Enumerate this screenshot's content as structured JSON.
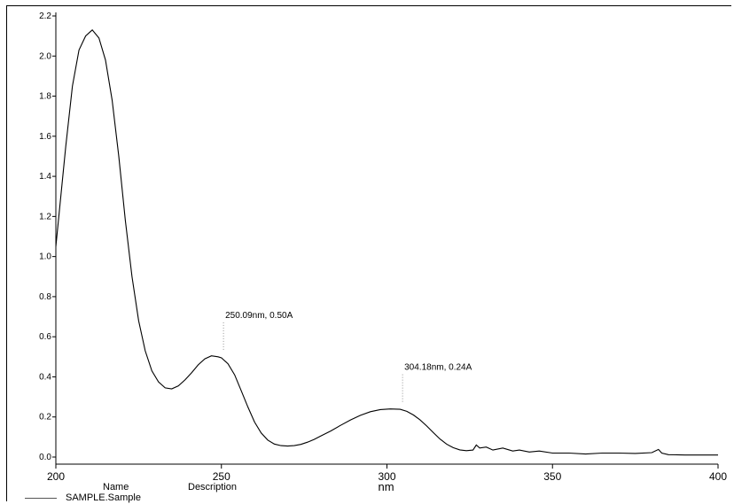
{
  "chart_data": {
    "type": "line",
    "title": "",
    "xlabel": "nm",
    "ylabel": "",
    "xlim": [
      200,
      400
    ],
    "ylim": [
      0,
      2.2
    ],
    "x_ticks": [
      200,
      250,
      300,
      350,
      400
    ],
    "x_tick_labels": [
      "200",
      "250",
      "300",
      "350",
      "400"
    ],
    "y_ticks": [
      0.0,
      0.2,
      0.4,
      0.6,
      0.8,
      1.0,
      1.2,
      1.4,
      1.6,
      1.8,
      2.0,
      2.2
    ],
    "y_tick_labels": [
      "0.0",
      "0.2",
      "0.4",
      "0.6",
      "0.8",
      "1.0",
      "1.2",
      "1.4",
      "1.6",
      "1.8",
      "2.0",
      "2.2"
    ],
    "grid": false,
    "series": [
      {
        "name": "SAMPLE.Sample",
        "color": "#000000",
        "x": [
          200,
          203,
          205,
          207,
          209,
          211,
          213,
          215,
          217,
          219,
          221,
          223,
          225,
          227,
          229,
          231,
          233,
          235,
          237,
          239,
          241,
          243,
          245,
          247,
          249,
          250,
          252,
          254,
          256,
          258,
          260,
          262,
          264,
          266,
          268,
          270,
          272,
          274,
          276,
          278,
          280,
          283,
          286,
          289,
          292,
          295,
          298,
          301,
          304,
          306,
          308,
          310,
          312,
          314,
          316,
          318,
          320,
          322,
          324,
          326,
          327,
          328,
          330,
          332,
          335,
          338,
          340,
          343,
          346,
          350,
          355,
          360,
          365,
          370,
          375,
          380,
          382,
          383,
          385,
          390,
          395,
          400
        ],
        "y": [
          1.05,
          1.55,
          1.85,
          2.03,
          2.1,
          2.13,
          2.09,
          1.98,
          1.78,
          1.5,
          1.18,
          0.9,
          0.68,
          0.53,
          0.43,
          0.375,
          0.345,
          0.34,
          0.355,
          0.385,
          0.42,
          0.46,
          0.49,
          0.505,
          0.5,
          0.495,
          0.465,
          0.41,
          0.33,
          0.25,
          0.175,
          0.12,
          0.085,
          0.065,
          0.057,
          0.055,
          0.057,
          0.063,
          0.074,
          0.088,
          0.105,
          0.13,
          0.158,
          0.185,
          0.208,
          0.226,
          0.237,
          0.24,
          0.238,
          0.228,
          0.21,
          0.185,
          0.155,
          0.122,
          0.09,
          0.065,
          0.047,
          0.036,
          0.032,
          0.035,
          0.06,
          0.045,
          0.05,
          0.035,
          0.045,
          0.03,
          0.035,
          0.025,
          0.03,
          0.02,
          0.02,
          0.015,
          0.02,
          0.02,
          0.018,
          0.022,
          0.038,
          0.02,
          0.012,
          0.01,
          0.01,
          0.01
        ]
      }
    ],
    "annotations": [
      {
        "text": "250.09nm, 0.50A",
        "x": 250.09,
        "y": 0.5
      },
      {
        "text": "304.18nm, 0.24A",
        "x": 304.18,
        "y": 0.24
      }
    ]
  },
  "legend": {
    "name_header": "Name",
    "description_header": "Description",
    "entry_name": "SAMPLE.Sample"
  }
}
